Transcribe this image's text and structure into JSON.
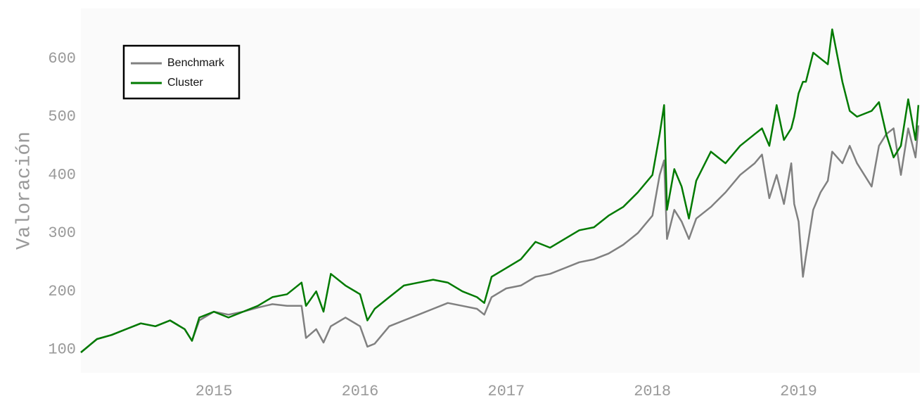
{
  "chart_data": {
    "type": "line",
    "y_label": "Valoración",
    "x": [
      2014.09,
      2014.2,
      2014.3,
      2014.4,
      2014.5,
      2014.6,
      2014.7,
      2014.8,
      2014.85,
      2014.9,
      2015.0,
      2015.1,
      2015.2,
      2015.3,
      2015.4,
      2015.5,
      2015.6,
      2015.63,
      2015.7,
      2015.75,
      2015.8,
      2015.9,
      2016.0,
      2016.05,
      2016.1,
      2016.2,
      2016.3,
      2016.4,
      2016.5,
      2016.6,
      2016.7,
      2016.8,
      2016.85,
      2016.9,
      2017.0,
      2017.1,
      2017.2,
      2017.3,
      2017.4,
      2017.5,
      2017.6,
      2017.7,
      2017.8,
      2017.9,
      2018.0,
      2018.05,
      2018.08,
      2018.1,
      2018.15,
      2018.2,
      2018.25,
      2018.3,
      2018.4,
      2018.5,
      2018.6,
      2018.7,
      2018.75,
      2018.8,
      2018.85,
      2018.9,
      2018.95,
      2018.97,
      2019.0,
      2019.03,
      2019.05,
      2019.1,
      2019.15,
      2019.2,
      2019.23,
      2019.3,
      2019.35,
      2019.4,
      2019.5,
      2019.55,
      2019.6,
      2019.65,
      2019.7,
      2019.75,
      2019.8,
      2019.82
    ],
    "series": [
      {
        "name": "Benchmark",
        "color": "#808080",
        "values": [
          95,
          118,
          125,
          135,
          145,
          140,
          150,
          135,
          115,
          150,
          165,
          160,
          165,
          172,
          178,
          175,
          175,
          120,
          135,
          112,
          140,
          155,
          140,
          105,
          110,
          140,
          150,
          160,
          170,
          180,
          175,
          170,
          160,
          190,
          205,
          210,
          225,
          230,
          240,
          250,
          255,
          265,
          280,
          300,
          330,
          400,
          425,
          290,
          340,
          320,
          290,
          325,
          345,
          370,
          400,
          420,
          435,
          360,
          400,
          350,
          420,
          350,
          320,
          225,
          260,
          340,
          370,
          390,
          440,
          420,
          450,
          420,
          380,
          450,
          470,
          480,
          400,
          480,
          430,
          485
        ]
      },
      {
        "name": "Cluster",
        "color": "#007a00",
        "values": [
          95,
          118,
          125,
          135,
          145,
          140,
          150,
          135,
          115,
          155,
          165,
          155,
          165,
          175,
          190,
          195,
          215,
          175,
          200,
          165,
          230,
          210,
          195,
          150,
          170,
          190,
          210,
          215,
          220,
          215,
          200,
          190,
          180,
          225,
          240,
          255,
          285,
          275,
          290,
          305,
          310,
          330,
          345,
          370,
          400,
          470,
          520,
          340,
          410,
          380,
          325,
          390,
          440,
          420,
          450,
          470,
          480,
          450,
          520,
          460,
          480,
          500,
          540,
          560,
          560,
          610,
          600,
          590,
          650,
          560,
          510,
          500,
          510,
          525,
          470,
          430,
          450,
          530,
          460,
          520
        ]
      }
    ],
    "xlim": [
      2014.09,
      2019.83
    ],
    "xticks": [
      2015,
      2016,
      2017,
      2018,
      2019
    ],
    "ylim": [
      60,
      686
    ],
    "yticks": [
      100,
      200,
      300,
      400,
      500,
      600
    ],
    "legend": "upper-left",
    "grid": false
  }
}
